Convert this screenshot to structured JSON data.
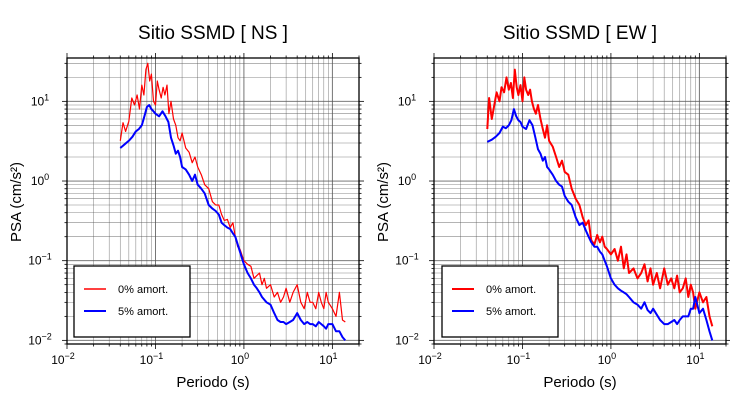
{
  "colors": {
    "undamped": "#ff0000",
    "damped": "#0000ff",
    "grid": "#555555",
    "frame": "#000000"
  },
  "chart_data": [
    {
      "type": "line",
      "title": "Sitio SSMD [ NS ]",
      "xlabel": "Periodo (s)",
      "ylabel": "PSA (cm/s²)",
      "xscale": "log",
      "yscale": "log",
      "xlim": [
        0.01,
        20
      ],
      "ylim": [
        0.009,
        35
      ],
      "x_ticks": [
        {
          "value": 0.01,
          "base": "10",
          "exp": "−2"
        },
        {
          "value": 0.1,
          "base": "10",
          "exp": "−1"
        },
        {
          "value": 1,
          "base": "10",
          "exp": "0"
        },
        {
          "value": 10,
          "base": "10",
          "exp": "1"
        }
      ],
      "y_ticks": [
        {
          "value": 0.01,
          "base": "10",
          "exp": "−2"
        },
        {
          "value": 0.1,
          "base": "10",
          "exp": "−1"
        },
        {
          "value": 1,
          "base": "10",
          "exp": "0"
        },
        {
          "value": 10,
          "base": "10",
          "exp": "1"
        }
      ],
      "grid": true,
      "legend": {
        "position": "bottom-left",
        "entries": [
          "0% amort.",
          "5% amort."
        ]
      },
      "series": [
        {
          "name": "0% amort.",
          "color": "#ff0000",
          "width": 1.2,
          "x": [
            0.04,
            0.043,
            0.046,
            0.05,
            0.054,
            0.058,
            0.062,
            0.066,
            0.07,
            0.074,
            0.078,
            0.082,
            0.086,
            0.09,
            0.095,
            0.1,
            0.105,
            0.11,
            0.116,
            0.122,
            0.128,
            0.135,
            0.142,
            0.15,
            0.16,
            0.17,
            0.18,
            0.19,
            0.2,
            0.22,
            0.24,
            0.26,
            0.28,
            0.3,
            0.33,
            0.36,
            0.4,
            0.44,
            0.48,
            0.52,
            0.56,
            0.6,
            0.65,
            0.7,
            0.75,
            0.8,
            0.85,
            0.9,
            1.0,
            1.1,
            1.2,
            1.3,
            1.4,
            1.5,
            1.6,
            1.7,
            1.8,
            2.0,
            2.2,
            2.4,
            2.6,
            2.8,
            3.0,
            3.3,
            3.6,
            4.0,
            4.4,
            4.8,
            5.2,
            5.6,
            6.0,
            6.5,
            7.0,
            7.5,
            8.0,
            8.5,
            9.0,
            10,
            11,
            12,
            13,
            14
          ],
          "y": [
            3.2,
            5.4,
            4.2,
            5.6,
            11,
            9,
            12,
            8,
            16,
            12,
            25,
            30,
            18,
            22,
            10,
            9,
            18,
            14,
            11,
            15,
            12,
            16,
            7,
            10,
            6,
            5,
            3.5,
            3.2,
            4.0,
            2.6,
            2.3,
            1.7,
            2.0,
            1.5,
            1.2,
            0.9,
            0.8,
            0.55,
            0.5,
            0.5,
            0.38,
            0.32,
            0.33,
            0.26,
            0.3,
            0.2,
            0.15,
            0.14,
            0.1,
            0.09,
            0.085,
            0.06,
            0.065,
            0.07,
            0.05,
            0.06,
            0.045,
            0.05,
            0.035,
            0.04,
            0.03,
            0.035,
            0.045,
            0.03,
            0.04,
            0.05,
            0.03,
            0.025,
            0.04,
            0.03,
            0.03,
            0.025,
            0.04,
            0.03,
            0.025,
            0.04,
            0.03,
            0.025,
            0.02,
            0.04,
            0.018,
            0.017
          ]
        },
        {
          "name": "5% amort.",
          "color": "#0000ff",
          "width": 2,
          "x": [
            0.04,
            0.045,
            0.05,
            0.055,
            0.06,
            0.065,
            0.07,
            0.075,
            0.08,
            0.085,
            0.09,
            0.095,
            0.1,
            0.11,
            0.12,
            0.13,
            0.14,
            0.15,
            0.16,
            0.17,
            0.18,
            0.19,
            0.2,
            0.22,
            0.24,
            0.26,
            0.28,
            0.3,
            0.33,
            0.36,
            0.4,
            0.44,
            0.48,
            0.52,
            0.56,
            0.6,
            0.65,
            0.7,
            0.75,
            0.8,
            0.85,
            0.9,
            1.0,
            1.1,
            1.2,
            1.3,
            1.4,
            1.5,
            1.6,
            1.8,
            2.0,
            2.2,
            2.4,
            2.6,
            2.8,
            3.0,
            3.3,
            3.6,
            4.0,
            4.4,
            4.8,
            5.2,
            5.6,
            6.0,
            6.5,
            7.0,
            7.5,
            8.0,
            8.5,
            9.0,
            10,
            11,
            12,
            13,
            14
          ],
          "y": [
            2.6,
            2.9,
            3.2,
            3.6,
            4.2,
            4.5,
            5.0,
            6.5,
            8.5,
            9.0,
            8.0,
            7.5,
            7.0,
            6.5,
            7.5,
            6.5,
            5.5,
            3.5,
            2.8,
            2.2,
            2.4,
            2.0,
            1.5,
            1.4,
            1.2,
            1.0,
            1.2,
            0.9,
            0.8,
            0.7,
            0.5,
            0.45,
            0.42,
            0.38,
            0.3,
            0.28,
            0.26,
            0.25,
            0.22,
            0.2,
            0.16,
            0.13,
            0.09,
            0.07,
            0.06,
            0.05,
            0.045,
            0.04,
            0.035,
            0.03,
            0.028,
            0.022,
            0.018,
            0.017,
            0.017,
            0.016,
            0.017,
            0.018,
            0.022,
            0.018,
            0.016,
            0.017,
            0.016,
            0.016,
            0.015,
            0.017,
            0.016,
            0.015,
            0.014,
            0.016,
            0.016,
            0.013,
            0.013,
            0.011,
            0.01
          ]
        }
      ]
    },
    {
      "type": "line",
      "title": "Sitio SSMD [ EW ]",
      "xlabel": "Periodo (s)",
      "ylabel": "PSA (cm/s²)",
      "xscale": "log",
      "yscale": "log",
      "xlim": [
        0.01,
        20
      ],
      "ylim": [
        0.009,
        35
      ],
      "x_ticks": [
        {
          "value": 0.01,
          "base": "10",
          "exp": "−2"
        },
        {
          "value": 0.1,
          "base": "10",
          "exp": "−1"
        },
        {
          "value": 1,
          "base": "10",
          "exp": "0"
        },
        {
          "value": 10,
          "base": "10",
          "exp": "1"
        }
      ],
      "y_ticks": [
        {
          "value": 0.01,
          "base": "10",
          "exp": "−2"
        },
        {
          "value": 0.1,
          "base": "10",
          "exp": "−1"
        },
        {
          "value": 1,
          "base": "10",
          "exp": "0"
        },
        {
          "value": 10,
          "base": "10",
          "exp": "1"
        }
      ],
      "grid": true,
      "legend": {
        "position": "bottom-left",
        "entries": [
          "0% amort.",
          "5% amort."
        ]
      },
      "series": [
        {
          "name": "0% amort.",
          "color": "#ff0000",
          "width": 2,
          "x": [
            0.04,
            0.042,
            0.045,
            0.048,
            0.051,
            0.055,
            0.058,
            0.062,
            0.066,
            0.07,
            0.074,
            0.078,
            0.082,
            0.086,
            0.09,
            0.095,
            0.1,
            0.105,
            0.11,
            0.116,
            0.122,
            0.128,
            0.135,
            0.142,
            0.15,
            0.16,
            0.17,
            0.18,
            0.19,
            0.2,
            0.22,
            0.24,
            0.26,
            0.28,
            0.3,
            0.33,
            0.36,
            0.4,
            0.44,
            0.48,
            0.52,
            0.56,
            0.6,
            0.65,
            0.7,
            0.75,
            0.8,
            0.85,
            0.9,
            1.0,
            1.1,
            1.2,
            1.3,
            1.4,
            1.5,
            1.6,
            1.8,
            2.0,
            2.2,
            2.4,
            2.6,
            2.8,
            3.0,
            3.3,
            3.6,
            4.0,
            4.4,
            4.8,
            5.2,
            5.6,
            6.0,
            6.5,
            7.0,
            7.5,
            8.0,
            8.5,
            9.0,
            10,
            11,
            12,
            13,
            14
          ],
          "y": [
            4.5,
            11,
            6,
            9,
            13,
            10,
            15,
            13,
            20,
            14,
            17,
            11,
            25,
            15,
            12,
            16,
            10,
            20,
            14,
            12,
            14,
            10,
            8,
            7,
            9,
            6,
            4.5,
            3.5,
            5,
            3.2,
            2.7,
            2.0,
            1.5,
            1.8,
            1.3,
            1.2,
            0.8,
            0.6,
            0.5,
            0.35,
            0.28,
            0.32,
            0.18,
            0.16,
            0.21,
            0.17,
            0.2,
            0.15,
            0.14,
            0.12,
            0.14,
            0.1,
            0.15,
            0.08,
            0.12,
            0.07,
            0.08,
            0.06,
            0.07,
            0.09,
            0.055,
            0.08,
            0.05,
            0.07,
            0.045,
            0.08,
            0.05,
            0.06,
            0.045,
            0.065,
            0.04,
            0.045,
            0.06,
            0.035,
            0.05,
            0.04,
            0.025,
            0.04,
            0.03,
            0.035,
            0.02,
            0.015
          ]
        },
        {
          "name": "5% amort.",
          "color": "#0000ff",
          "width": 2,
          "x": [
            0.04,
            0.045,
            0.05,
            0.055,
            0.06,
            0.065,
            0.07,
            0.075,
            0.08,
            0.085,
            0.09,
            0.095,
            0.1,
            0.11,
            0.12,
            0.13,
            0.14,
            0.15,
            0.16,
            0.17,
            0.18,
            0.19,
            0.2,
            0.22,
            0.24,
            0.26,
            0.28,
            0.3,
            0.33,
            0.36,
            0.4,
            0.44,
            0.48,
            0.52,
            0.56,
            0.6,
            0.65,
            0.7,
            0.75,
            0.8,
            0.85,
            0.9,
            1.0,
            1.1,
            1.2,
            1.3,
            1.4,
            1.5,
            1.6,
            1.8,
            2.0,
            2.2,
            2.4,
            2.6,
            2.8,
            3.0,
            3.3,
            3.6,
            4.0,
            4.4,
            4.8,
            5.2,
            5.6,
            6.0,
            6.5,
            7.0,
            7.5,
            8.0,
            8.5,
            9.0,
            10,
            11,
            12,
            13,
            14
          ],
          "y": [
            3.1,
            3.3,
            3.6,
            4.0,
            4.8,
            4.6,
            5.0,
            5.8,
            8.0,
            6.5,
            5.8,
            5.5,
            4.8,
            4.5,
            5.8,
            5.0,
            3.5,
            2.5,
            2.2,
            1.8,
            2.0,
            1.5,
            1.4,
            1.2,
            1.0,
            0.9,
            0.85,
            0.65,
            0.55,
            0.5,
            0.35,
            0.28,
            0.3,
            0.24,
            0.2,
            0.17,
            0.15,
            0.15,
            0.13,
            0.12,
            0.1,
            0.085,
            0.06,
            0.05,
            0.045,
            0.042,
            0.04,
            0.038,
            0.035,
            0.03,
            0.028,
            0.025,
            0.03,
            0.024,
            0.022,
            0.025,
            0.021,
            0.018,
            0.016,
            0.016,
            0.017,
            0.018,
            0.016,
            0.018,
            0.02,
            0.02,
            0.02,
            0.025,
            0.025,
            0.035,
            0.022,
            0.025,
            0.018,
            0.013,
            0.01
          ]
        }
      ]
    }
  ]
}
